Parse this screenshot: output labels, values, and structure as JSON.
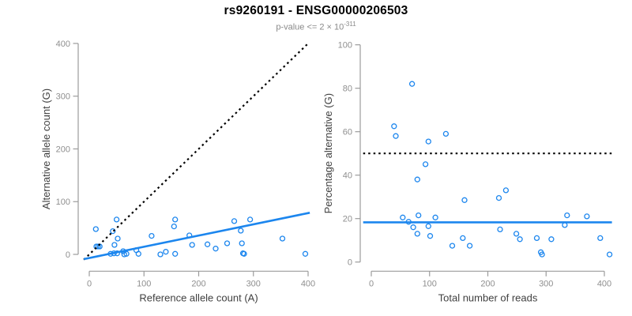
{
  "header": {
    "title": "rs9260191 - ENSG00000206503",
    "subtitle_prefix": "p-value <= 2 × 10",
    "subtitle_sup": "-311"
  },
  "colors": {
    "accent_blue": "#1c86ee",
    "dotted_black": "#000000",
    "axis_line": "#9b9b9b",
    "tick_label": "#8f8f8f",
    "axis_title": "#404040",
    "title_text": "#000000",
    "subtitle_text": "#8a8a8a"
  },
  "chart_data": [
    {
      "type": "scatter",
      "panel": "left",
      "title": "",
      "xlabel": "Reference allele count (A)",
      "ylabel": "Alternative allele count (G)",
      "xlim": [
        0,
        400
      ],
      "ylim": [
        0,
        400
      ],
      "xticks": [
        0,
        100,
        200,
        300,
        400
      ],
      "yticks": [
        0,
        100,
        200,
        300,
        400
      ],
      "grid": false,
      "legend": "none",
      "marker": "open-circle",
      "points": [
        [
          12,
          48
        ],
        [
          50,
          66
        ],
        [
          43,
          44
        ],
        [
          52,
          30
        ],
        [
          46,
          18
        ],
        [
          13,
          15
        ],
        [
          16,
          15
        ],
        [
          19,
          15
        ],
        [
          39,
          1
        ],
        [
          45,
          2
        ],
        [
          51,
          2
        ],
        [
          62,
          6
        ],
        [
          64,
          0
        ],
        [
          68,
          1
        ],
        [
          86,
          8
        ],
        [
          90,
          1
        ],
        [
          114,
          35
        ],
        [
          130,
          0
        ],
        [
          140,
          5
        ],
        [
          155,
          53
        ],
        [
          157,
          66
        ],
        [
          157,
          1
        ],
        [
          183,
          36
        ],
        [
          188,
          18
        ],
        [
          216,
          19
        ],
        [
          231,
          11
        ],
        [
          252,
          21
        ],
        [
          265,
          63
        ],
        [
          277,
          45
        ],
        [
          279,
          21
        ],
        [
          281,
          2
        ],
        [
          283,
          1
        ],
        [
          294,
          66
        ],
        [
          353,
          30
        ],
        [
          395,
          1
        ]
      ],
      "lines": [
        {
          "name": "identity-line",
          "style": "dotted",
          "color": "#000000",
          "from": [
            -10,
            -10
          ],
          "to": [
            400,
            400
          ]
        },
        {
          "name": "regression-line",
          "style": "solid",
          "color": "#1c86ee",
          "from": [
            -10,
            -9
          ],
          "to": [
            403,
            79
          ]
        }
      ]
    },
    {
      "type": "scatter",
      "panel": "right",
      "title": "",
      "xlabel": "Total number of reads",
      "ylabel": "Percentage alternative (G)",
      "xlim": [
        0,
        400
      ],
      "ylim": [
        0,
        100
      ],
      "xticks": [
        0,
        100,
        200,
        300,
        400
      ],
      "yticks": [
        0,
        20,
        40,
        60,
        80,
        100
      ],
      "grid": false,
      "legend": "none",
      "marker": "open-circle",
      "points": [
        [
          70,
          82
        ],
        [
          39,
          62.5
        ],
        [
          42,
          58
        ],
        [
          128,
          59
        ],
        [
          98,
          55.5
        ],
        [
          93,
          45
        ],
        [
          79,
          38
        ],
        [
          231,
          33
        ],
        [
          219,
          29.5
        ],
        [
          160,
          28.5
        ],
        [
          54,
          20.5
        ],
        [
          81,
          21.5
        ],
        [
          110,
          20.5
        ],
        [
          64,
          18.5
        ],
        [
          72,
          16
        ],
        [
          98,
          16.5
        ],
        [
          221,
          15
        ],
        [
          332,
          17
        ],
        [
          336,
          21.5
        ],
        [
          370,
          21
        ],
        [
          79,
          13
        ],
        [
          101,
          12
        ],
        [
          157,
          11
        ],
        [
          139,
          7.5
        ],
        [
          169,
          7.5
        ],
        [
          249,
          13
        ],
        [
          255,
          10.5
        ],
        [
          284,
          11
        ],
        [
          309,
          10.5
        ],
        [
          393,
          11
        ],
        [
          291,
          4.5
        ],
        [
          293,
          3.5
        ],
        [
          409,
          3.5
        ]
      ],
      "lines": [
        {
          "name": "fifty-percent-line",
          "style": "dotted",
          "color": "#000000",
          "from": [
            -14,
            50
          ],
          "to": [
            413,
            50
          ]
        },
        {
          "name": "mean-line",
          "style": "solid",
          "color": "#1c86ee",
          "from": [
            -14,
            18.3
          ],
          "to": [
            413,
            18.3
          ]
        }
      ]
    }
  ]
}
